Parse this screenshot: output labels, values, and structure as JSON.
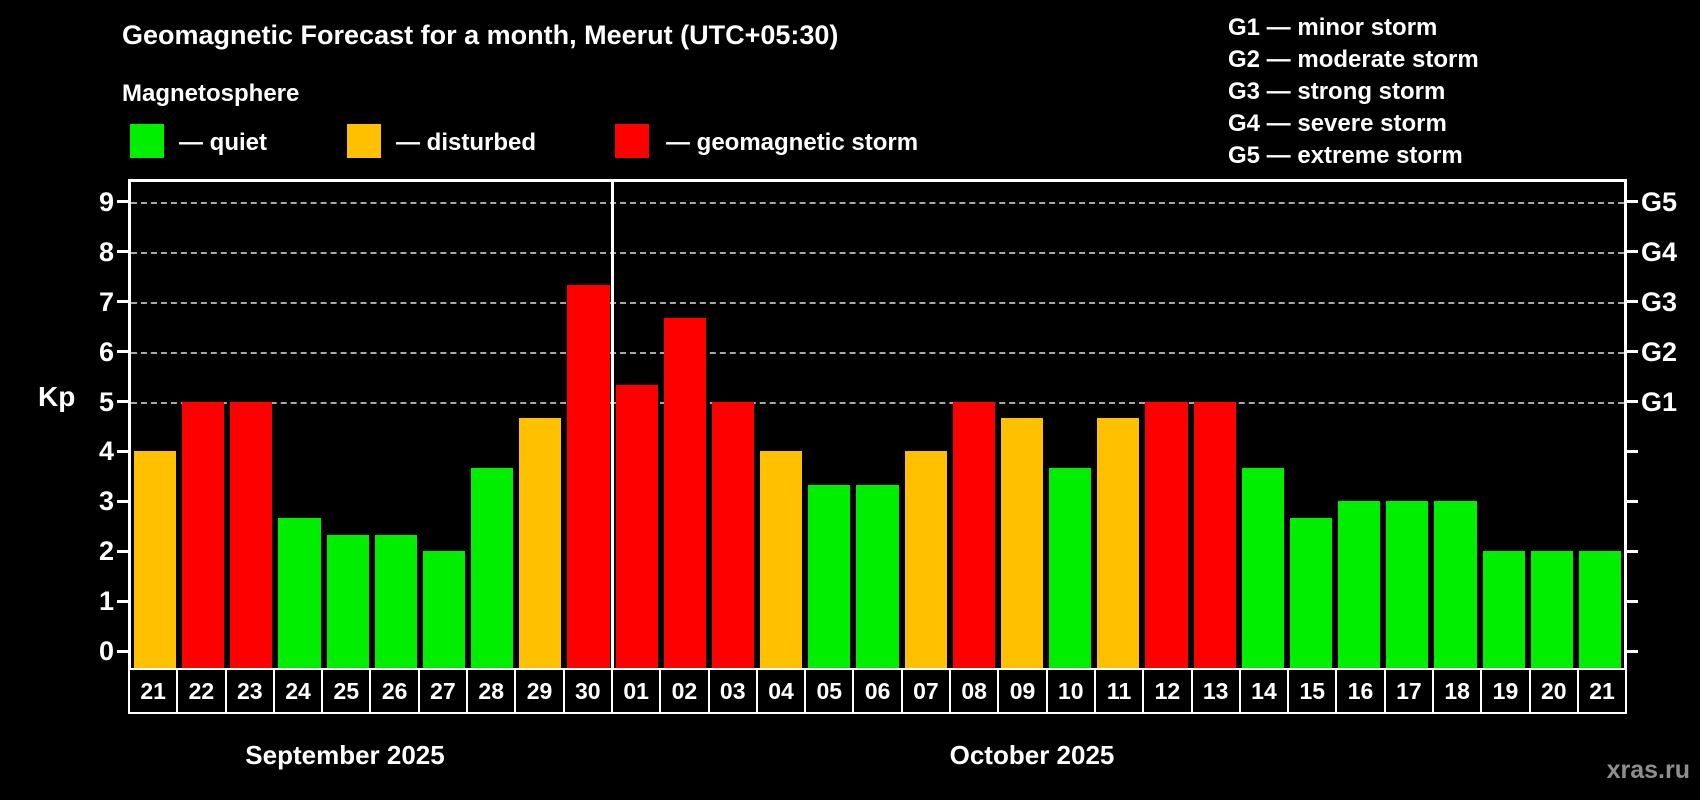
{
  "header": {
    "title": "Geomagnetic Forecast for a month, Meerut (UTC+05:30)",
    "subtitle": "Magnetosphere"
  },
  "legend": {
    "items": [
      {
        "key": "quiet",
        "label": "— quiet",
        "color": "#00ef00"
      },
      {
        "key": "disturbed",
        "label": "— disturbed",
        "color": "#ffc000"
      },
      {
        "key": "storm",
        "label": "— geomagnetic storm",
        "color": "#ff0000"
      }
    ]
  },
  "g_legend": {
    "lines": [
      "G1 — minor storm",
      "G2 — moderate storm",
      "G3 — strong storm",
      "G4 — severe storm",
      "G5 — extreme storm"
    ]
  },
  "watermark": "xras.ru",
  "chart_data": {
    "type": "bar",
    "title": "Geomagnetic Forecast for a month, Meerut (UTC+05:30)",
    "ylabel": "Kp",
    "ylim": [
      0,
      9
    ],
    "yticks": [
      0,
      1,
      2,
      3,
      4,
      5,
      6,
      7,
      8,
      9
    ],
    "grid_levels": [
      5,
      6,
      7,
      8,
      9
    ],
    "grid_style": "dashed",
    "right_axis_labels": [
      {
        "kp": 5,
        "label": "G1"
      },
      {
        "kp": 6,
        "label": "G2"
      },
      {
        "kp": 7,
        "label": "G3"
      },
      {
        "kp": 8,
        "label": "G4"
      },
      {
        "kp": 9,
        "label": "G5"
      }
    ],
    "status_colors": {
      "quiet": "#00ef00",
      "disturbed": "#ffc000",
      "storm": "#ff0000"
    },
    "months": [
      {
        "label": "September 2025",
        "days": [
          {
            "day": "21",
            "kp": 4.0,
            "status": "disturbed"
          },
          {
            "day": "22",
            "kp": 5.0,
            "status": "storm"
          },
          {
            "day": "23",
            "kp": 5.0,
            "status": "storm"
          },
          {
            "day": "24",
            "kp": 2.67,
            "status": "quiet"
          },
          {
            "day": "25",
            "kp": 2.33,
            "status": "quiet"
          },
          {
            "day": "26",
            "kp": 2.33,
            "status": "quiet"
          },
          {
            "day": "27",
            "kp": 2.0,
            "status": "quiet"
          },
          {
            "day": "28",
            "kp": 3.67,
            "status": "quiet"
          },
          {
            "day": "29",
            "kp": 4.67,
            "status": "disturbed"
          },
          {
            "day": "30",
            "kp": 7.33,
            "status": "storm"
          }
        ]
      },
      {
        "label": "October 2025",
        "days": [
          {
            "day": "01",
            "kp": 5.33,
            "status": "storm"
          },
          {
            "day": "02",
            "kp": 6.67,
            "status": "storm"
          },
          {
            "day": "03",
            "kp": 5.0,
            "status": "storm"
          },
          {
            "day": "04",
            "kp": 4.0,
            "status": "disturbed"
          },
          {
            "day": "05",
            "kp": 3.33,
            "status": "quiet"
          },
          {
            "day": "06",
            "kp": 3.33,
            "status": "quiet"
          },
          {
            "day": "07",
            "kp": 4.0,
            "status": "disturbed"
          },
          {
            "day": "08",
            "kp": 5.0,
            "status": "storm"
          },
          {
            "day": "09",
            "kp": 4.67,
            "status": "disturbed"
          },
          {
            "day": "10",
            "kp": 3.67,
            "status": "quiet"
          },
          {
            "day": "11",
            "kp": 4.67,
            "status": "disturbed"
          },
          {
            "day": "12",
            "kp": 5.0,
            "status": "storm"
          },
          {
            "day": "13",
            "kp": 5.0,
            "status": "storm"
          },
          {
            "day": "14",
            "kp": 3.67,
            "status": "quiet"
          },
          {
            "day": "15",
            "kp": 2.67,
            "status": "quiet"
          },
          {
            "day": "16",
            "kp": 3.0,
            "status": "quiet"
          },
          {
            "day": "17",
            "kp": 3.0,
            "status": "quiet"
          },
          {
            "day": "18",
            "kp": 3.0,
            "status": "quiet"
          },
          {
            "day": "19",
            "kp": 2.0,
            "status": "quiet"
          },
          {
            "day": "20",
            "kp": 2.0,
            "status": "quiet"
          },
          {
            "day": "21",
            "kp": 2.0,
            "status": "quiet"
          }
        ]
      }
    ]
  }
}
